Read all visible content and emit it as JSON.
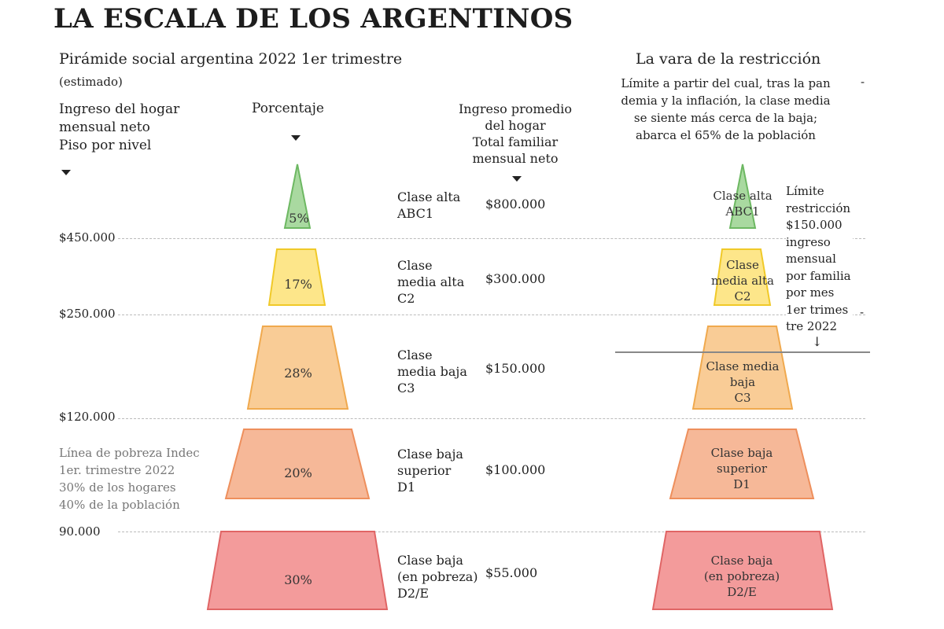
{
  "title": "LA ESCALA DE LOS ARGENTINOS",
  "left": {
    "subtitle": "Pirámide social argentina 2022 1er trimestre",
    "estimado": "(estimado)",
    "col_ingreso": "Ingreso del hogar\nmensual neto\nPiso por nivel",
    "col_porcentaje": "Porcentaje",
    "col_promedio": "Ingreso promedio\ndel hogar\nTotal familiar\nmensual neto",
    "thresholds": [
      "$450.000",
      "$250.000",
      "$120.000",
      "90.000"
    ],
    "pobreza_note": "Línea de pobreza Indec\n1er. trimestre 2022\n30%  de los hogares\n40%  de la población"
  },
  "levels": [
    {
      "name": "Clase alta\nABC1",
      "percent": "5%",
      "income": "$800.000",
      "color": "#a9d9a0",
      "stroke": "#6db862"
    },
    {
      "name": "Clase\nmedia alta\nC2",
      "percent": "17%",
      "income": "$300.000",
      "color": "#fde68a",
      "stroke": "#f0c928"
    },
    {
      "name": "Clase\nmedia baja\nC3",
      "percent": "28%",
      "income": "$150.000",
      "color": "#f9cc96",
      "stroke": "#f0a94e"
    },
    {
      "name": "Clase baja\nsuperior\nD1",
      "percent": "20%",
      "income": "$100.000",
      "color": "#f6b898",
      "stroke": "#ee8f5c"
    },
    {
      "name": "Clase baja\n(en pobreza)\nD2/E",
      "percent": "30%",
      "income": "$55.000",
      "color": "#f39b9b",
      "stroke": "#e06565"
    }
  ],
  "right": {
    "subtitle": "La vara de la restricción",
    "description": "Límite a partir del cual, tras la pan\ndemia y la inflación, la clase media\nse siente más cerca de la baja;\nabarca el     65% de la población",
    "dash1": "-",
    "dash2": "-",
    "limit_note": "Límite\nrestricción\n$150.000\ningreso\nmensual\npor familia\npor mes\n1er trimes\ntre 2022",
    "limit_arrow": "↓",
    "labels": [
      "Clase alta\nABC1",
      "Clase\nmedia alta\nC2",
      "Clase media\nbaja\nC3",
      "Clase baja\nsuperior\nD1",
      "Clase baja\n(en pobreza)\nD2/E"
    ]
  }
}
